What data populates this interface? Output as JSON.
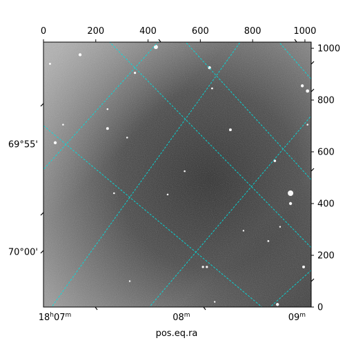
{
  "chart_data": {
    "type": "image",
    "xlabel": "pos.eq.ra",
    "ylabel": "",
    "pixel_axes": {
      "xlim": [
        0,
        1024
      ],
      "ylim": [
        0,
        1024
      ],
      "top_ticks": [
        0,
        200,
        400,
        600,
        800,
        1000
      ],
      "right_ticks": [
        0,
        200,
        400,
        600,
        800,
        1000
      ],
      "top_tick_labels": [
        "0",
        "200",
        "400",
        "600",
        "800",
        "1000"
      ],
      "right_tick_labels": [
        "0",
        "200",
        "400",
        "600",
        "800",
        "1000"
      ]
    },
    "world_axes": {
      "ra_ticks": [
        {
          "main": "18",
          "sup1": "h",
          "mid": "07",
          "sup2": "m",
          "px": -4
        },
        {
          "main": "",
          "sup1": "",
          "mid": "08",
          "sup2": "m",
          "px": 480
        },
        {
          "main": "",
          "sup1": "",
          "mid": "09",
          "sup2": "m",
          "px": 922
        }
      ],
      "dec_ticks": [
        {
          "label": "69°55'",
          "py": 630
        },
        {
          "label": "70°00'",
          "py": 214
        }
      ]
    },
    "grid": true,
    "grid_color": "#00e0e0",
    "image_colormap": "gray",
    "stars": [
      {
        "x": 430,
        "y": 1005,
        "r": 3.0
      },
      {
        "x": 140,
        "y": 975,
        "r": 2.2
      },
      {
        "x": 25,
        "y": 940,
        "r": 1.5
      },
      {
        "x": 635,
        "y": 925,
        "r": 2.2
      },
      {
        "x": 350,
        "y": 905,
        "r": 1.6
      },
      {
        "x": 645,
        "y": 845,
        "r": 1.4
      },
      {
        "x": 990,
        "y": 855,
        "r": 2.2
      },
      {
        "x": 1010,
        "y": 835,
        "r": 2.4
      },
      {
        "x": 245,
        "y": 765,
        "r": 1.3
      },
      {
        "x": 75,
        "y": 705,
        "r": 1.3
      },
      {
        "x": 245,
        "y": 690,
        "r": 2.0
      },
      {
        "x": 715,
        "y": 685,
        "r": 2.0
      },
      {
        "x": 45,
        "y": 635,
        "r": 2.2
      },
      {
        "x": 320,
        "y": 655,
        "r": 1.3
      },
      {
        "x": 1010,
        "y": 705,
        "r": 1.3
      },
      {
        "x": 885,
        "y": 565,
        "r": 1.8
      },
      {
        "x": 540,
        "y": 525,
        "r": 1.3
      },
      {
        "x": 270,
        "y": 440,
        "r": 1.3
      },
      {
        "x": 475,
        "y": 435,
        "r": 1.3
      },
      {
        "x": 945,
        "y": 440,
        "r": 4.0
      },
      {
        "x": 945,
        "y": 400,
        "r": 2.2
      },
      {
        "x": 905,
        "y": 310,
        "r": 1.2
      },
      {
        "x": 765,
        "y": 295,
        "r": 1.2
      },
      {
        "x": 860,
        "y": 255,
        "r": 1.4
      },
      {
        "x": 995,
        "y": 155,
        "r": 2.0
      },
      {
        "x": 610,
        "y": 155,
        "r": 1.6
      },
      {
        "x": 625,
        "y": 155,
        "r": 1.6
      },
      {
        "x": 330,
        "y": 100,
        "r": 1.2
      },
      {
        "x": 895,
        "y": 10,
        "r": 2.2
      },
      {
        "x": 655,
        "y": 20,
        "r": 1.2
      }
    ]
  }
}
